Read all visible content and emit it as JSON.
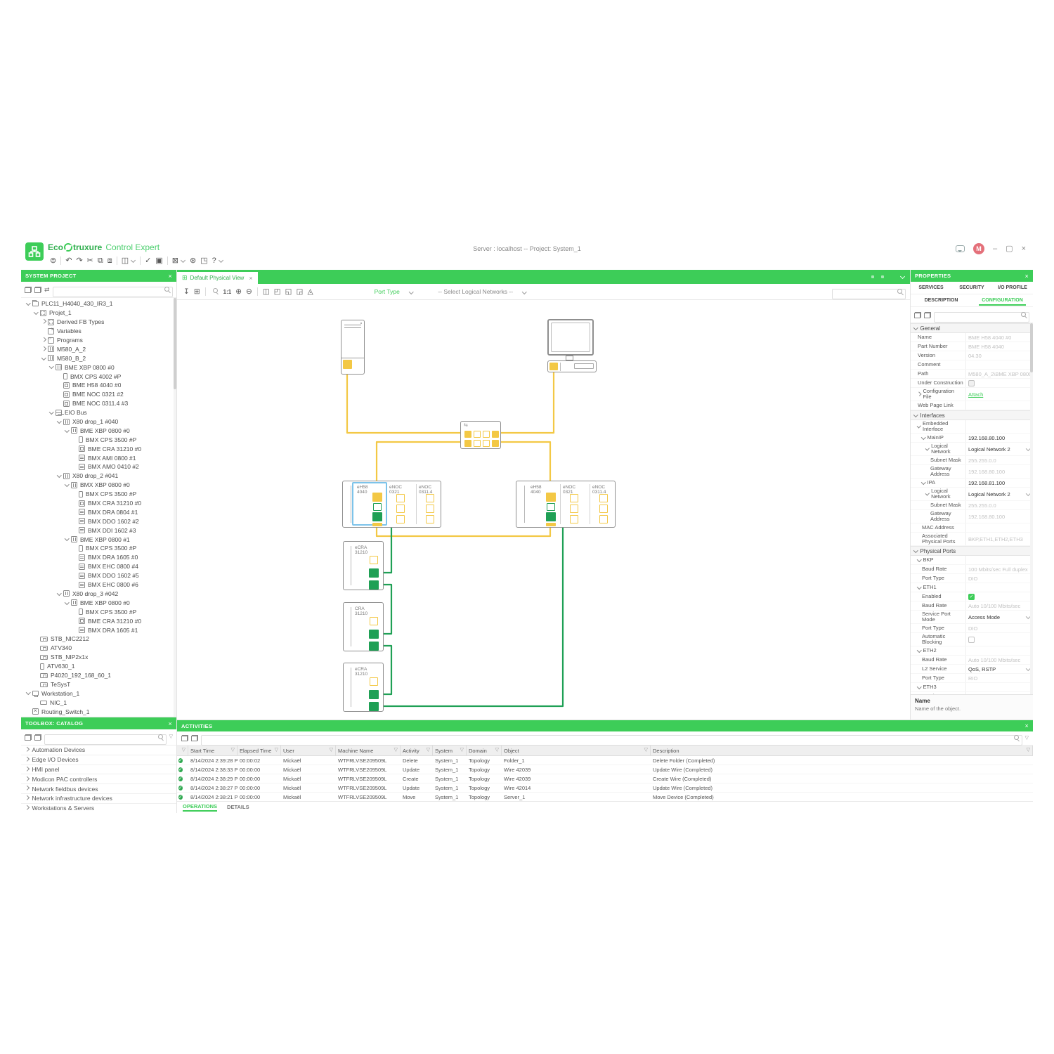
{
  "window": {
    "brand_eco": "Eco",
    "brand_truxure": "truxure",
    "brand_product": "Control Expert",
    "title": "Server : localhost -- Project: System_1",
    "avatar_initial": "M"
  },
  "main_toolbar": {
    "icons": [
      {
        "name": "print",
        "glyph": "⊜"
      },
      {
        "name": "sep"
      },
      {
        "name": "undo",
        "glyph": "↶"
      },
      {
        "name": "redo",
        "glyph": "↷"
      },
      {
        "name": "cut",
        "glyph": "✂"
      },
      {
        "name": "copy",
        "glyph": "⧉"
      },
      {
        "name": "paste",
        "glyph": "⧈"
      },
      {
        "name": "sep"
      },
      {
        "name": "window-layout",
        "glyph": "◫",
        "chev": true
      },
      {
        "name": "sep"
      },
      {
        "name": "validate",
        "glyph": "✓"
      },
      {
        "name": "deploy",
        "glyph": "▣"
      },
      {
        "name": "sep"
      },
      {
        "name": "tools",
        "glyph": "⊠",
        "chev": true
      },
      {
        "name": "settings",
        "glyph": "⊛"
      },
      {
        "name": "fullscreen",
        "glyph": "◳"
      },
      {
        "name": "help",
        "glyph": "?",
        "chev": true
      }
    ]
  },
  "system_project": {
    "title": "SYSTEM PROJECT",
    "search_placeholder": "",
    "tree": [
      {
        "label": "PLC11_H4040_430_IR3_1",
        "d": 0,
        "ic": "folder",
        "e": "o"
      },
      {
        "label": "Projet_1",
        "d": 1,
        "ic": "project",
        "e": "o"
      },
      {
        "label": "Derived FB Types",
        "d": 2,
        "ic": "fb",
        "e": "c"
      },
      {
        "label": "Variables",
        "d": 2,
        "ic": "var"
      },
      {
        "label": "Programs",
        "d": 2,
        "ic": "prog",
        "e": "c"
      },
      {
        "label": "M580_A_2",
        "d": 2,
        "ic": "rack",
        "e": "c"
      },
      {
        "label": "M580_B_2",
        "d": 2,
        "ic": "rack",
        "e": "o"
      },
      {
        "label": "BME XBP 0800 #0",
        "d": 3,
        "ic": "backplane",
        "e": "o"
      },
      {
        "label": "BMX CPS 4002 #P",
        "d": 4,
        "ic": "cps"
      },
      {
        "label": "BME H58 4040 #0",
        "d": 4,
        "ic": "cpu"
      },
      {
        "label": "BME NOC 0321 #2",
        "d": 4,
        "ic": "cpu"
      },
      {
        "label": "BME NOC 0311.4 #3",
        "d": 4,
        "ic": "cpu"
      },
      {
        "label": "EIO Bus",
        "d": 3,
        "ic": "bus",
        "e": "o"
      },
      {
        "label": "X80 drop_1 #040",
        "d": 4,
        "ic": "rack",
        "e": "o"
      },
      {
        "label": "BME XBP 0800 #0",
        "d": 5,
        "ic": "backplane",
        "e": "o"
      },
      {
        "label": "BMX CPS 3500 #P",
        "d": 6,
        "ic": "cps"
      },
      {
        "label": "BME CRA 31210 #0",
        "d": 6,
        "ic": "cpu"
      },
      {
        "label": "BMX AMI 0800 #1",
        "d": 6,
        "ic": "module"
      },
      {
        "label": "BMX AMO 0410 #2",
        "d": 6,
        "ic": "module"
      },
      {
        "label": "X80 drop_2 #041",
        "d": 4,
        "ic": "rack",
        "e": "o"
      },
      {
        "label": "BMX XBP 0800 #0",
        "d": 5,
        "ic": "backplane",
        "e": "o"
      },
      {
        "label": "BMX CPS 3500 #P",
        "d": 6,
        "ic": "cps"
      },
      {
        "label": "BMX CRA 31210 #0",
        "d": 6,
        "ic": "cpu"
      },
      {
        "label": "BMX DRA 0804 #1",
        "d": 6,
        "ic": "module"
      },
      {
        "label": "BMX DDO 1602 #2",
        "d": 6,
        "ic": "module"
      },
      {
        "label": "BMX DDI 1602 #3",
        "d": 6,
        "ic": "module"
      },
      {
        "label": "BME XBP 0800 #1",
        "d": 5,
        "ic": "backplane",
        "e": "o"
      },
      {
        "label": "BMX CPS 3500 #P",
        "d": 6,
        "ic": "cps"
      },
      {
        "label": "BMX DRA 1605 #0",
        "d": 6,
        "ic": "module"
      },
      {
        "label": "BMX EHC 0800 #4",
        "d": 6,
        "ic": "module"
      },
      {
        "label": "BMX DDO 1602 #5",
        "d": 6,
        "ic": "module"
      },
      {
        "label": "BMX EHC 0800 #6",
        "d": 6,
        "ic": "module"
      },
      {
        "label": "X80 drop_3 #042",
        "d": 4,
        "ic": "rack",
        "e": "o"
      },
      {
        "label": "BME XBP 0800 #0",
        "d": 5,
        "ic": "backplane",
        "e": "o"
      },
      {
        "label": "BMX CPS 3500 #P",
        "d": 6,
        "ic": "cps"
      },
      {
        "label": "BME CRA 31210 #0",
        "d": 6,
        "ic": "cpu"
      },
      {
        "label": "BMX DRA 1605 #1",
        "d": 6,
        "ic": "module"
      },
      {
        "label": "STB_NIC2212",
        "d": 1,
        "ic": "device"
      },
      {
        "label": "ATV340",
        "d": 1,
        "ic": "device"
      },
      {
        "label": "STB_NIP2x1x",
        "d": 1,
        "ic": "device"
      },
      {
        "label": "ATV630_1",
        "d": 1,
        "ic": "drive"
      },
      {
        "label": "P4020_192_168_60_1",
        "d": 1,
        "ic": "device"
      },
      {
        "label": "TeSysT",
        "d": 1,
        "ic": "device"
      },
      {
        "label": "Workstation_1",
        "d": 0,
        "ic": "workstation",
        "e": "o"
      },
      {
        "label": "NIC_1",
        "d": 1,
        "ic": "nic"
      },
      {
        "label": "Routing_Switch_1",
        "d": 0,
        "ic": "switch"
      }
    ]
  },
  "toolbox": {
    "title": "TOOLBOX: CATALOG",
    "items": [
      "Automation Devices",
      "Edge I/O Devices",
      "HMI panel",
      "Modicon PAC controllers",
      "Network fieldbus devices",
      "Network infrastructure devices",
      "Workstations & Servers"
    ]
  },
  "view": {
    "tab": "Default Physical View",
    "toolbar": {
      "icons": [
        {
          "name": "export",
          "glyph": "↧"
        },
        {
          "name": "grid",
          "glyph": "⊞"
        },
        {
          "name": "sep"
        },
        {
          "name": "zoom-search",
          "glyph": "mag"
        },
        {
          "name": "zoom-1-1",
          "glyph": "1:1"
        },
        {
          "name": "zoom-in",
          "glyph": "⊕"
        },
        {
          "name": "zoom-out",
          "glyph": "⊖"
        },
        {
          "name": "sep"
        },
        {
          "name": "export-image",
          "glyph": "◫"
        },
        {
          "name": "export-up",
          "glyph": "◰"
        },
        {
          "name": "export-left",
          "glyph": "◱"
        },
        {
          "name": "export-top",
          "glyph": "◲"
        },
        {
          "name": "export-tri",
          "glyph": "◬"
        }
      ],
      "port_type": "Port Type",
      "select_networks": "-- Select Logical Networks --"
    },
    "diagram": {
      "h58": [
        "eH58",
        "4040"
      ],
      "noc1": [
        "eNOC",
        "0321"
      ],
      "noc2": [
        "eNOC",
        "0311.4"
      ],
      "ecra": [
        "eCRA",
        "31210"
      ],
      "cra": [
        "CRA",
        "31210"
      ]
    }
  },
  "properties": {
    "title": "PROPERTIES",
    "tabs1": [
      "SERVICES",
      "SECURITY",
      "I/O PROFILE"
    ],
    "tabs2": [
      "DESCRIPTION",
      "CONFIGURATION"
    ],
    "active_tab": "CONFIGURATION",
    "rows": [
      {
        "t": "sec",
        "l": "General"
      },
      {
        "l": "Name",
        "v": "BME H58 4040 #0",
        "m": 1,
        "i": 1
      },
      {
        "l": "Part Number",
        "v": "BME H58 4040",
        "m": 1,
        "i": 1
      },
      {
        "l": "Version",
        "v": "04.30",
        "m": 1,
        "i": 1
      },
      {
        "l": "Comment",
        "i": 1
      },
      {
        "l": "Path",
        "v": "M580_A_2\\BME XBP 0800",
        "m": 1,
        "i": 1
      },
      {
        "l": "Under Construction",
        "t": "chk",
        "chk": "dis",
        "i": 1
      },
      {
        "l": "Configuration File",
        "t": "lnk",
        "v": "Attach",
        "i": 1,
        "c": "r"
      },
      {
        "l": "Web Page Link",
        "i": 1
      },
      {
        "t": "sec",
        "l": "Interfaces"
      },
      {
        "l": "Embedded Interface",
        "i": 1,
        "c": "o"
      },
      {
        "l": "MainIP",
        "v": "192.168.80.100",
        "i": 2,
        "c": "o"
      },
      {
        "l": "Logical Network",
        "v": "Logical Network 2",
        "t": "drop",
        "i": 3,
        "c": "o"
      },
      {
        "l": "Subnet Mask",
        "v": "255.255.0.0",
        "m": 1,
        "i": 4
      },
      {
        "l": "Gateway Address",
        "v": "192.168.80.100",
        "m": 1,
        "i": 4
      },
      {
        "l": "IPA",
        "v": "192.168.81.100",
        "i": 2,
        "c": "o"
      },
      {
        "l": "Logical Network",
        "v": "Logical Network 2",
        "t": "drop",
        "i": 3,
        "c": "o"
      },
      {
        "l": "Subnet Mask",
        "v": "255.255.0.0",
        "m": 1,
        "i": 4
      },
      {
        "l": "Gateway Address",
        "v": "192.168.80.100",
        "m": 1,
        "i": 4
      },
      {
        "l": "MAC Address",
        "i": 2
      },
      {
        "l": "Associated Physical Ports",
        "v": "BKP,ETH1,ETH2,ETH3",
        "m": 1,
        "i": 2
      },
      {
        "t": "sec",
        "l": "Physical Ports"
      },
      {
        "l": "BKP",
        "i": 1,
        "c": "o"
      },
      {
        "l": "Baud Rate",
        "v": "100 Mbits/sec Full duplex",
        "m": 1,
        "i": 2
      },
      {
        "l": "Port Type",
        "v": "DIO",
        "m": 1,
        "i": 2
      },
      {
        "l": "ETH1",
        "i": 1,
        "c": "o"
      },
      {
        "l": "Enabled",
        "t": "chk",
        "chk": "on",
        "i": 2
      },
      {
        "l": "Baud Rate",
        "v": "Auto 10/100 Mbits/sec",
        "m": 1,
        "i": 2
      },
      {
        "l": "Service Port Mode",
        "v": "Access Mode",
        "t": "drop",
        "i": 2
      },
      {
        "l": "Port Type",
        "v": "DIO",
        "m": 1,
        "i": 2
      },
      {
        "l": "Automatic Blocking",
        "t": "chk",
        "chk": "off",
        "i": 2
      },
      {
        "l": "ETH2",
        "i": 1,
        "c": "o"
      },
      {
        "l": "Baud Rate",
        "v": "Auto 10/100 Mbits/sec",
        "m": 1,
        "i": 2
      },
      {
        "l": "L2 Service",
        "v": "QoS, RSTP",
        "t": "drop",
        "i": 2
      },
      {
        "l": "Port Type",
        "v": "RIO",
        "m": 1,
        "i": 2
      },
      {
        "l": "ETH3",
        "i": 1,
        "c": "o"
      },
      {
        "l": "Baud Rate",
        "v": "Auto 10/100 Mbits/sec",
        "m": 1,
        "i": 2
      },
      {
        "l": "L2 Service",
        "v": "QoS, RSTP",
        "t": "drop",
        "i": 2
      }
    ],
    "footer_title": "Name",
    "footer_desc": "Name of the object."
  },
  "activities": {
    "title": "ACTIVITIES",
    "columns": [
      "Start Time",
      "Elapsed Time",
      "User",
      "Machine Name",
      "Activity",
      "System",
      "Domain",
      "Object",
      "Description"
    ],
    "rows": [
      [
        "8/14/2024 2:39:28 PM",
        "00:00:02",
        "Mickaël",
        "WTFRLVSE209509L",
        "Delete",
        "System_1",
        "Topology",
        "Folder_1",
        "Delete Folder (Completed)"
      ],
      [
        "8/14/2024 2:38:33 PM",
        "00:00:00",
        "Mickaël",
        "WTFRLVSE209509L",
        "Update",
        "System_1",
        "Topology",
        "Wire 42039",
        "Update Wire (Completed)"
      ],
      [
        "8/14/2024 2:38:29 PM",
        "00:00:00",
        "Mickaël",
        "WTFRLVSE209509L",
        "Create",
        "System_1",
        "Topology",
        "Wire 42039",
        "Create Wire (Completed)"
      ],
      [
        "8/14/2024 2:38:27 PM",
        "00:00:00",
        "Mickaël",
        "WTFRLVSE209509L",
        "Update",
        "System_1",
        "Topology",
        "Wire 42014",
        "Update Wire (Completed)"
      ],
      [
        "8/14/2024 2:38:21 PM",
        "00:00:00",
        "Mickaël",
        "WTFRLVSE209509L",
        "Move",
        "System_1",
        "Topology",
        "Server_1",
        "Move Device (Completed)"
      ]
    ],
    "tabs": [
      "OPERATIONS",
      "DETAILS"
    ]
  }
}
